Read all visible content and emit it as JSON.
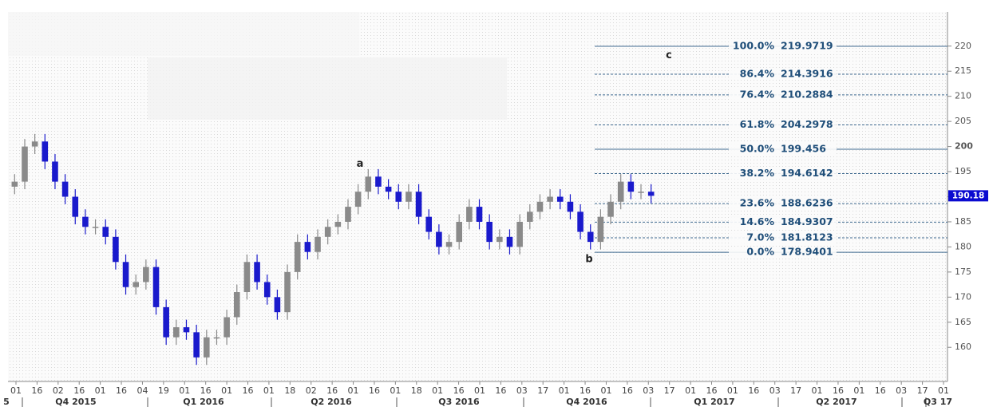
{
  "chart_data": {
    "type": "candlestick",
    "open": [
      192,
      193,
      200,
      201,
      197,
      193,
      190,
      186,
      184,
      184,
      182,
      177,
      172,
      173,
      176,
      168,
      162,
      164,
      163,
      158,
      162,
      162,
      166,
      171,
      177,
      173,
      170,
      167,
      175,
      181,
      179,
      182,
      184,
      185,
      188,
      191,
      194,
      192,
      191,
      189,
      191,
      186,
      183,
      180,
      181,
      185,
      188,
      185,
      181,
      182,
      180,
      185,
      187,
      189,
      190,
      189,
      187,
      183,
      181,
      186,
      189,
      193,
      191,
      191
    ],
    "high": [
      194.5,
      201.5,
      202.5,
      202.5,
      198.5,
      194.5,
      191.5,
      187.5,
      185.5,
      185.5,
      183.5,
      178.5,
      174.5,
      177.5,
      177.5,
      169.5,
      165.5,
      165.5,
      164.5,
      163.5,
      163.5,
      167.5,
      172.5,
      178.5,
      178.5,
      174.5,
      171.5,
      176.5,
      182.5,
      182.5,
      183.5,
      185.5,
      186.5,
      189.5,
      192.5,
      195.5,
      195.5,
      193.5,
      192.5,
      192.5,
      192.5,
      187.5,
      184.5,
      182.5,
      186.5,
      189.5,
      189.5,
      186.5,
      183.5,
      183.5,
      186.5,
      188.5,
      190.5,
      191.5,
      191.5,
      190.5,
      188.5,
      184.5,
      187.5,
      190.5,
      194.5,
      194.5,
      192.5,
      192.5
    ],
    "low": [
      190.5,
      191.5,
      198.5,
      195.5,
      191.5,
      188.5,
      184.5,
      182.5,
      182.5,
      180.5,
      175.5,
      170.5,
      170.5,
      171.5,
      166.5,
      160.5,
      160.5,
      161.5,
      156.5,
      156.5,
      160.5,
      160.5,
      164.5,
      169.5,
      171.5,
      168.5,
      165.5,
      165.5,
      173.5,
      177.5,
      177.5,
      180.5,
      182.5,
      183.5,
      186.5,
      189.5,
      190.5,
      189.5,
      187.5,
      187.5,
      184.5,
      181.5,
      178.5,
      178.5,
      179.5,
      183.5,
      183.5,
      179.5,
      179.5,
      178.5,
      178.5,
      183.5,
      185.5,
      187.5,
      187.5,
      185.5,
      181.5,
      179.5,
      179.5,
      184.5,
      187.5,
      189.5,
      189.5,
      188.68
    ],
    "close": [
      193,
      200,
      201,
      197,
      193,
      190,
      186,
      184,
      184,
      182,
      177,
      172,
      173,
      176,
      168,
      162,
      164,
      163,
      158,
      162,
      162,
      166,
      171,
      177,
      173,
      170,
      167,
      175,
      181,
      179,
      182,
      184,
      185,
      188,
      191,
      194,
      192,
      191,
      189,
      191,
      186,
      183,
      180,
      181,
      185,
      188,
      185,
      181,
      182,
      180,
      185,
      187,
      189,
      190,
      189,
      187,
      183,
      181,
      186,
      189,
      193,
      191,
      191,
      190.18
    ],
    "up_color": "#8a8a8a",
    "down_color": "#1a1acc",
    "x_labels": [
      "01",
      "16",
      "02",
      "16",
      "01",
      "16",
      "04",
      "19",
      "01",
      "16",
      "01",
      "16",
      "01",
      "18",
      "02",
      "16",
      "01",
      "16",
      "01",
      "18",
      "01",
      "16",
      "01",
      "16",
      "03",
      "17",
      "01",
      "16",
      "01",
      "16",
      "03",
      "17",
      "01",
      "16",
      "01",
      "16",
      "03",
      "17",
      "01",
      "16",
      "01",
      "16",
      "03",
      "17",
      "01"
    ],
    "quarters": [
      "5",
      "Q4 2015",
      "Q1 2016",
      "Q2 2016",
      "Q3 2016",
      "Q4 2016",
      "Q1 2017",
      "Q2 2017",
      "Q3 17"
    ],
    "ylim": [
      153.2,
      226.8
    ],
    "yticks": [
      160,
      165,
      170,
      175,
      180,
      185,
      190,
      195,
      200,
      205,
      210,
      215,
      220
    ],
    "last_price": 190.18,
    "last_price_color": "#0a0ad0",
    "fib_levels": [
      {
        "label": "100.0%",
        "value": 219.9719
      },
      {
        "label": "86.4%",
        "value": 214.3916
      },
      {
        "label": "76.4%",
        "value": 210.2884
      },
      {
        "label": "61.8%",
        "value": 204.2978
      },
      {
        "label": "50.0%",
        "value": 199.456
      },
      {
        "label": "38.2%",
        "value": 194.6142
      },
      {
        "label": "23.6%",
        "value": 188.6236
      },
      {
        "label": "14.6%",
        "value": 184.9307
      },
      {
        "label": "7.0%",
        "value": 181.8123
      },
      {
        "label": "0.0%",
        "value": 178.9401
      }
    ],
    "fib_color": "#3f6a8f",
    "annotations": [
      {
        "text": "a",
        "value": 196.5
      },
      {
        "text": "b",
        "value": 177.5
      },
      {
        "text": "c",
        "value": 218.1
      }
    ]
  }
}
